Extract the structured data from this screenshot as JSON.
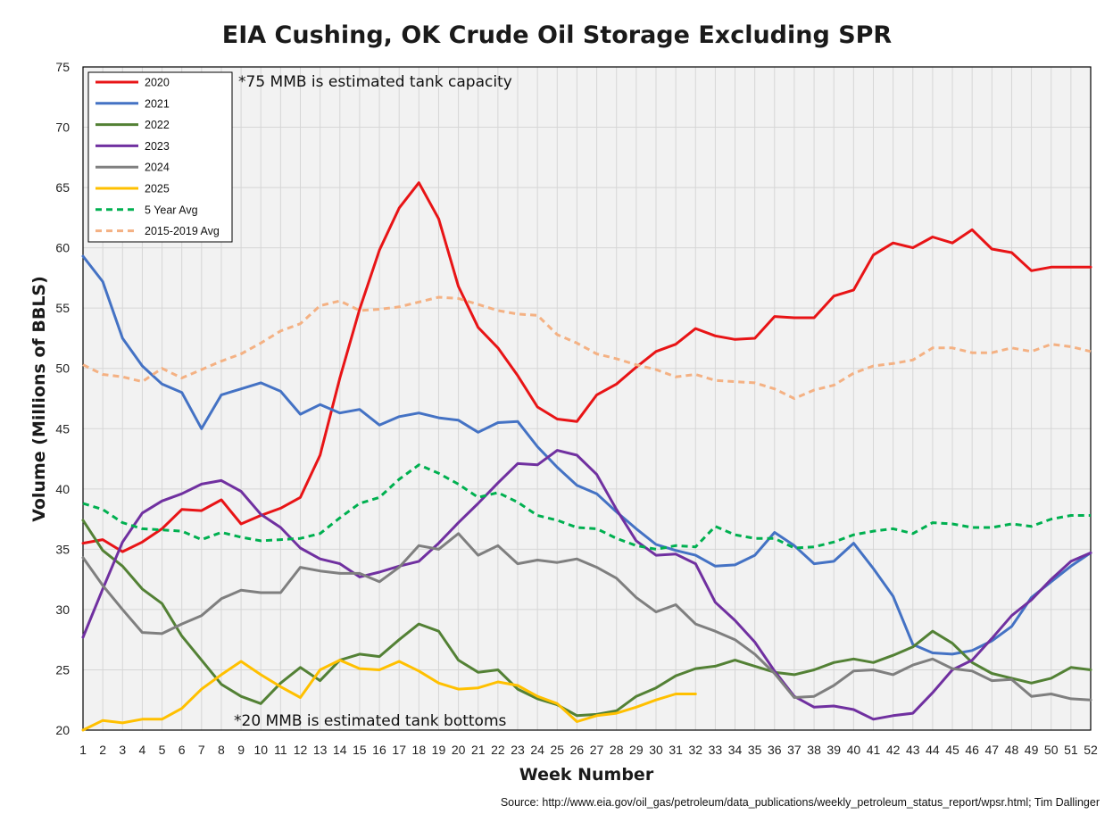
{
  "chart_data": {
    "type": "line",
    "title": "EIA Cushing, OK Crude Oil Storage Excluding SPR",
    "xlabel": "Week Number",
    "ylabel": "Volume (Millions of BBLS)",
    "ylim": [
      20,
      75
    ],
    "y_ticks": [
      20,
      25,
      30,
      35,
      40,
      45,
      50,
      55,
      60,
      65,
      70,
      75
    ],
    "x_ticks": [
      1,
      2,
      3,
      4,
      5,
      6,
      7,
      8,
      9,
      10,
      11,
      12,
      13,
      14,
      15,
      16,
      17,
      18,
      19,
      20,
      21,
      22,
      23,
      24,
      25,
      26,
      27,
      28,
      29,
      30,
      31,
      32,
      33,
      34,
      35,
      36,
      37,
      38,
      39,
      40,
      41,
      42,
      43,
      44,
      45,
      46,
      47,
      48,
      49,
      50,
      51,
      52
    ],
    "grid": true,
    "legend_position": "top-left",
    "annotations": [
      "*75 MMB is estimated tank capacity",
      "*20 MMB is estimated tank bottoms"
    ],
    "source": "Source: http://www.eia.gov/oil_gas/petroleum/data_publications/weekly_petroleum_status_report/wpsr.html; Tim Dallinger",
    "series": [
      {
        "name": "2020",
        "color": "#e81416",
        "dash": false,
        "values": [
          35.5,
          35.8,
          34.8,
          35.6,
          36.7,
          38.3,
          38.2,
          39.1,
          37.1,
          37.8,
          38.4,
          39.3,
          42.8,
          49.2,
          54.9,
          59.8,
          63.3,
          65.4,
          62.4,
          56.8,
          53.4,
          51.7,
          49.4,
          46.8,
          45.8,
          45.6,
          47.8,
          48.7,
          50.1,
          51.4,
          52.0,
          53.3,
          52.7,
          52.4,
          52.5,
          54.3,
          54.2,
          54.2,
          56.0,
          56.5,
          59.4,
          60.4,
          60.0,
          60.9,
          60.4,
          61.5,
          59.9,
          59.6,
          58.1,
          58.4,
          58.4,
          58.4
        ]
      },
      {
        "name": "2021",
        "color": "#4472c4",
        "dash": false,
        "values": [
          59.3,
          57.2,
          52.5,
          50.2,
          48.7,
          48.0,
          45.0,
          47.8,
          48.3,
          48.8,
          48.1,
          46.2,
          47.0,
          46.3,
          46.6,
          45.3,
          46.0,
          46.3,
          45.9,
          45.7,
          44.7,
          45.5,
          45.6,
          43.5,
          41.8,
          40.3,
          39.6,
          38.1,
          36.7,
          35.4,
          34.9,
          34.5,
          33.6,
          33.7,
          34.5,
          36.4,
          35.3,
          33.8,
          34.0,
          35.5,
          33.4,
          31.1,
          27.1,
          26.4,
          26.3,
          26.6,
          27.4,
          28.6,
          31.0,
          32.3,
          33.6,
          34.7
        ]
      },
      {
        "name": "2022",
        "color": "#538135",
        "dash": false,
        "values": [
          37.4,
          34.9,
          33.6,
          31.7,
          30.5,
          27.8,
          25.8,
          23.8,
          22.8,
          22.2,
          23.9,
          25.2,
          24.1,
          25.8,
          26.3,
          26.1,
          27.5,
          28.8,
          28.2,
          25.8,
          24.8,
          25.0,
          23.4,
          22.6,
          22.1,
          21.2,
          21.3,
          21.6,
          22.8,
          23.5,
          24.5,
          25.1,
          25.3,
          25.8,
          25.3,
          24.8,
          24.6,
          25.0,
          25.6,
          25.9,
          25.6,
          26.2,
          26.9,
          28.2,
          27.2,
          25.6,
          24.7,
          24.3,
          23.9,
          24.3,
          25.2,
          25.0
        ]
      },
      {
        "name": "2023",
        "color": "#7030a0",
        "dash": false,
        "values": [
          27.7,
          31.7,
          35.6,
          38.0,
          39.0,
          39.6,
          40.4,
          40.7,
          39.8,
          37.9,
          36.8,
          35.1,
          34.2,
          33.8,
          32.7,
          33.1,
          33.6,
          34.0,
          35.5,
          37.2,
          38.8,
          40.5,
          42.1,
          42.0,
          43.2,
          42.8,
          41.2,
          38.3,
          35.7,
          34.5,
          34.6,
          33.8,
          30.6,
          29.1,
          27.3,
          24.9,
          22.8,
          21.9,
          22.0,
          21.7,
          20.9,
          21.2,
          21.4,
          23.1,
          25.0,
          25.8,
          27.6,
          29.5,
          30.8,
          32.5,
          34.0,
          34.7
        ]
      },
      {
        "name": "2024",
        "color": "#7f7f7f",
        "dash": false,
        "values": [
          34.3,
          32.0,
          30.0,
          28.1,
          28.0,
          28.8,
          29.5,
          30.9,
          31.6,
          31.4,
          31.4,
          33.5,
          33.2,
          33.0,
          33.0,
          32.3,
          33.5,
          35.3,
          35.0,
          36.3,
          34.5,
          35.3,
          33.8,
          34.1,
          33.9,
          34.2,
          33.5,
          32.6,
          31.0,
          29.8,
          30.4,
          28.8,
          28.2,
          27.5,
          26.3,
          24.7,
          22.7,
          22.8,
          23.7,
          24.9,
          25.0,
          24.6,
          25.4,
          25.9,
          25.1,
          24.9,
          24.1,
          24.2,
          22.8,
          23.0,
          22.6,
          22.5
        ]
      },
      {
        "name": "2025",
        "color": "#ffc000",
        "dash": false,
        "values": [
          20.0,
          20.8,
          20.6,
          20.9,
          20.9,
          21.8,
          23.4,
          24.6,
          25.7,
          24.6,
          23.6,
          22.7,
          25.0,
          25.8,
          25.1,
          25.0,
          25.7,
          24.9,
          23.9,
          23.4,
          23.5,
          24.0,
          23.7,
          22.8,
          22.2,
          20.7,
          21.2,
          21.4,
          21.9,
          22.5,
          23.0,
          23.0
        ]
      },
      {
        "name": "5 Year Avg",
        "color": "#00b050",
        "dash": true,
        "values": [
          38.8,
          38.3,
          37.2,
          36.7,
          36.6,
          36.5,
          35.8,
          36.4,
          36.0,
          35.7,
          35.8,
          35.9,
          36.3,
          37.6,
          38.8,
          39.3,
          40.8,
          42.0,
          41.3,
          40.4,
          39.3,
          39.7,
          38.9,
          37.8,
          37.4,
          36.8,
          36.7,
          35.9,
          35.3,
          35.0,
          35.3,
          35.2,
          36.9,
          36.2,
          35.9,
          35.9,
          35.1,
          35.2,
          35.6,
          36.2,
          36.5,
          36.7,
          36.3,
          37.2,
          37.1,
          36.8,
          36.8,
          37.1,
          36.9,
          37.5,
          37.8,
          37.8
        ]
      },
      {
        "name": "2015-2019 Avg",
        "color": "#f4b183",
        "dash": true,
        "values": [
          50.3,
          49.5,
          49.3,
          48.9,
          50.0,
          49.2,
          49.9,
          50.6,
          51.2,
          52.1,
          53.1,
          53.7,
          55.2,
          55.6,
          54.8,
          54.9,
          55.1,
          55.5,
          55.9,
          55.8,
          55.3,
          54.8,
          54.5,
          54.4,
          52.8,
          52.1,
          51.2,
          50.8,
          50.3,
          49.9,
          49.3,
          49.5,
          49.0,
          48.9,
          48.8,
          48.3,
          47.5,
          48.2,
          48.6,
          49.6,
          50.2,
          50.4,
          50.7,
          51.7,
          51.7,
          51.3,
          51.3,
          51.7,
          51.4,
          52.0,
          51.8,
          51.4
        ]
      }
    ]
  }
}
